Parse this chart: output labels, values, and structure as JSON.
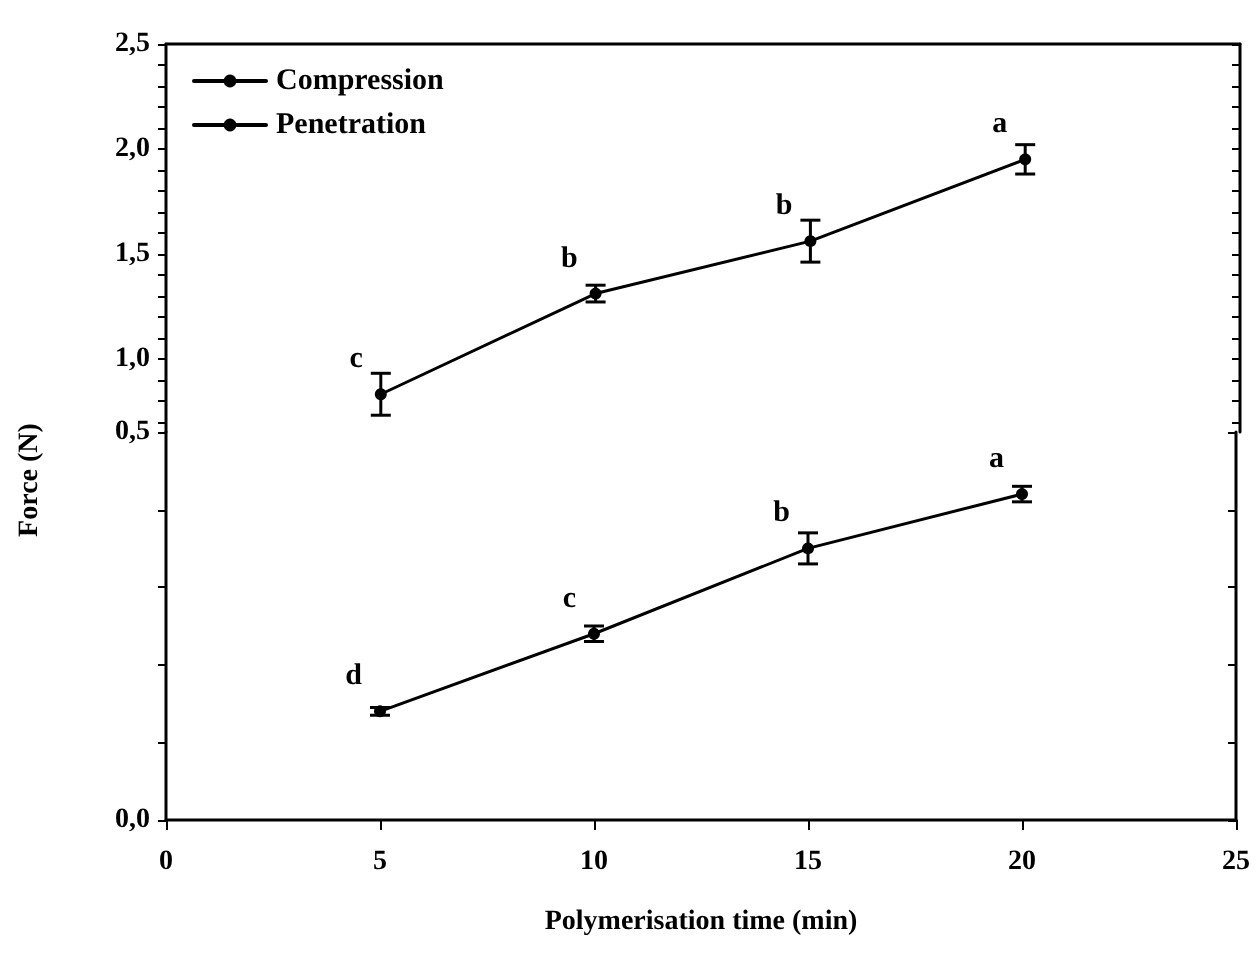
{
  "chart_data": [
    {
      "type": "line",
      "ylabel": "Force (N)",
      "legend": "top left",
      "marker": "circle",
      "x": [
        5,
        10,
        15,
        20
      ],
      "xlim": [
        0,
        25
      ],
      "ylim": [
        0.65,
        2.5
      ],
      "tick_labels": "y",
      "yticks": [
        {
          "value": 0.7,
          "label": null
        },
        {
          "value": 0.8,
          "label": null
        },
        {
          "value": 0.9,
          "label": null
        },
        {
          "value": 1,
          "label": "1,0"
        },
        {
          "value": 1.1,
          "label": null
        },
        {
          "value": 1.2,
          "label": null
        },
        {
          "value": 1.3,
          "label": null
        },
        {
          "value": 1.4,
          "label": null
        },
        {
          "value": 1.5,
          "label": "1,5"
        },
        {
          "value": 1.6,
          "label": null
        },
        {
          "value": 1.7,
          "label": null
        },
        {
          "value": 1.8,
          "label": null
        },
        {
          "value": 1.9,
          "label": null
        },
        {
          "value": 2,
          "label": "2,0"
        },
        {
          "value": 2.1,
          "label": null
        },
        {
          "value": 2.2,
          "label": null
        },
        {
          "value": 2.3,
          "label": null
        },
        {
          "value": 2.4,
          "label": null
        },
        {
          "value": 2.5,
          "label": "2,5"
        }
      ],
      "series": [
        {
          "name": "Compression",
          "color": "#000000",
          "values": [
            0.83,
            1.31,
            1.56,
            1.95
          ],
          "errors": [
            0.1,
            0.04,
            0.1,
            0.07
          ]
        }
      ],
      "annotations": [
        {
          "text": "c",
          "x": 5,
          "y": 0.83
        },
        {
          "text": "b",
          "x": 10,
          "y": 1.31
        },
        {
          "text": "b",
          "x": 15,
          "y": 1.56
        },
        {
          "text": "a",
          "x": 20,
          "y": 1.95
        }
      ]
    },
    {
      "type": "line",
      "xlabel": "Polymerisation time (min)",
      "legend": "top left",
      "marker": "circle",
      "x": [
        5,
        10,
        15,
        20
      ],
      "xlim": [
        0,
        25
      ],
      "xticks": [
        0,
        5,
        10,
        15,
        20,
        25
      ],
      "ylim": [
        0,
        0.5
      ],
      "yticks": [
        {
          "value": 0,
          "label": "0,0"
        },
        {
          "value": 0.1,
          "label": null
        },
        {
          "value": 0.2,
          "label": null
        },
        {
          "value": 0.3,
          "label": null
        },
        {
          "value": 0.4,
          "label": null
        },
        {
          "value": 0.5,
          "label": "0,5"
        }
      ],
      "series": [
        {
          "name": "Penetration",
          "color": "#000000",
          "values": [
            0.14,
            0.24,
            0.35,
            0.42
          ],
          "errors": [
            0.005,
            0.01,
            0.02,
            0.01
          ]
        }
      ],
      "annotations": [
        {
          "text": "d",
          "x": 5,
          "y": 0.14
        },
        {
          "text": "c",
          "x": 10,
          "y": 0.24
        },
        {
          "text": "b",
          "x": 15,
          "y": 0.35
        },
        {
          "text": "a",
          "x": 20,
          "y": 0.42
        }
      ]
    }
  ]
}
